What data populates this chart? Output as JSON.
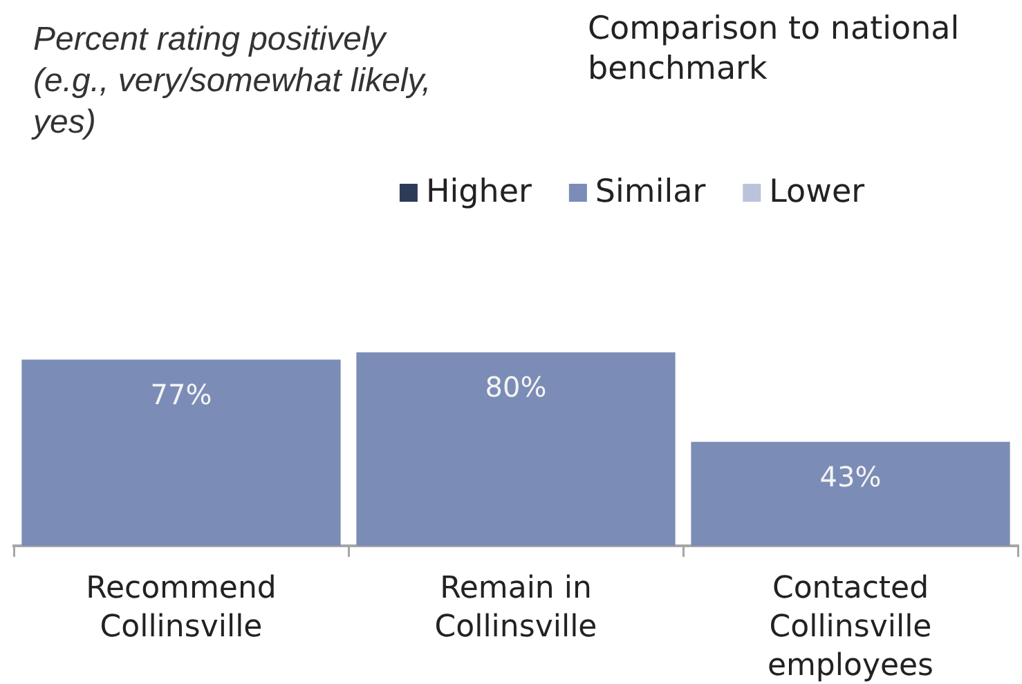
{
  "chart_data": {
    "type": "bar",
    "title": "Percent rating positively (e.g., very/somewhat likely, yes)",
    "legend_title": "Comparison to national benchmark",
    "categories": [
      "Recommend Collinsville",
      "Remain in Collinsville",
      "Contacted Collinsville employees"
    ],
    "series": [
      {
        "name": "Higher",
        "color": "#2d3a58",
        "values": [
          null,
          null,
          null
        ]
      },
      {
        "name": "Similar",
        "color": "#7b8cb6",
        "values": [
          77,
          80,
          43
        ],
        "value_labels": [
          "77%",
          "80%",
          "43%"
        ]
      },
      {
        "name": "Lower",
        "color": "#bac3d9",
        "values": [
          null,
          null,
          null
        ]
      }
    ],
    "legend": "top",
    "tick_labels": "x"
  }
}
